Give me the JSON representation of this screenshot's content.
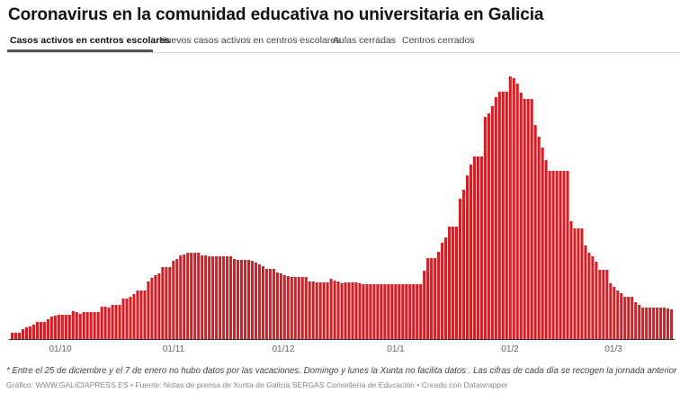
{
  "title": "Coronavirus en la comunidad educativa no universitaria en Galicia",
  "tabs": [
    {
      "label": "Casos activos en centros escolares",
      "active": true
    },
    {
      "label": "Nuevos casos activos en centros escolares",
      "active": false
    },
    {
      "label": "Aulas cerradas",
      "active": false
    },
    {
      "label": "Centros cerrados",
      "active": false
    }
  ],
  "note": "* Entre el 25 de diciembre y el 7 de enero no hubo datos por las vacaciones. Domingo y lunes la Xunta no facilita datos . Las cifras de cada día se recogen la jornada anterior",
  "credits": "Gráfico: WWW.GALICIAPRESS.ES • Fuente: Notas de prensa de Xunta de Galicia SERGAS Consellería de Educación • Creado con Datawrapper",
  "chart_data": {
    "type": "bar",
    "title": "",
    "xlabel": "",
    "ylabel": "",
    "y_axis_labels_shown": false,
    "grid": false,
    "bar_color": "#d11f26",
    "x_ticks": [
      "01/10",
      "01/11",
      "01/12",
      "01/1",
      "01/2",
      "01/3"
    ],
    "values_note_relative": true,
    "values": [
      7,
      7,
      7,
      11,
      13,
      14,
      16,
      19,
      19,
      19,
      22,
      25,
      26,
      27,
      27,
      27,
      27,
      31,
      30,
      28,
      30,
      30,
      30,
      30,
      30,
      36,
      36,
      35,
      38,
      38,
      38,
      45,
      45,
      47,
      50,
      54,
      54,
      54,
      64,
      68,
      71,
      73,
      80,
      80,
      80,
      87,
      89,
      93,
      94,
      96,
      96,
      96,
      96,
      93,
      93,
      92,
      92,
      92,
      92,
      92,
      92,
      92,
      89,
      88,
      88,
      88,
      88,
      87,
      85,
      83,
      81,
      78,
      78,
      78,
      74,
      73,
      71,
      70,
      69,
      69,
      69,
      69,
      69,
      64,
      64,
      63,
      63,
      63,
      63,
      67,
      65,
      64,
      62,
      63,
      63,
      63,
      63,
      62,
      61,
      61,
      61,
      61,
      61,
      61,
      61,
      61,
      61,
      61,
      61,
      61,
      61,
      61,
      61,
      61,
      61,
      76,
      90,
      90,
      90,
      97,
      107,
      113,
      125,
      125,
      125,
      156,
      166,
      182,
      194,
      203,
      203,
      203,
      247,
      251,
      259,
      269,
      275,
      275,
      275,
      292,
      290,
      284,
      274,
      267,
      267,
      267,
      238,
      225,
      213,
      199,
      187,
      187,
      187,
      187,
      187,
      187,
      131,
      123,
      123,
      123,
      104,
      96,
      92,
      86,
      77,
      77,
      77,
      62,
      58,
      54,
      51,
      47,
      47,
      47,
      41,
      38,
      35,
      35,
      35,
      35,
      35,
      35,
      35,
      34,
      33
    ]
  }
}
